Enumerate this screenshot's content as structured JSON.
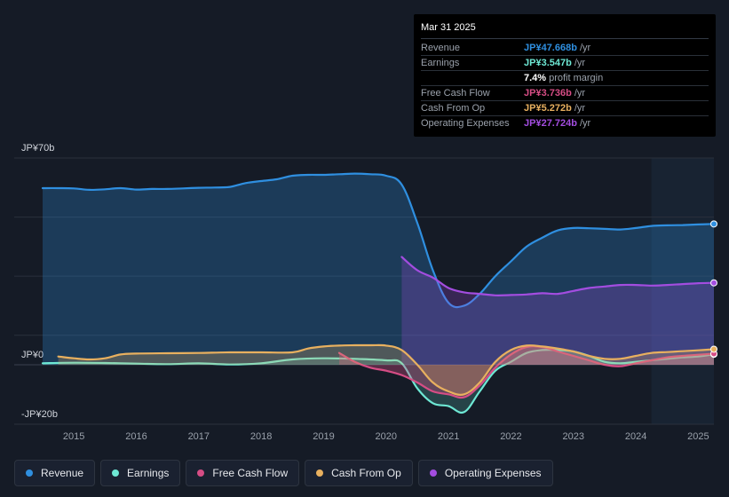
{
  "chart_data": {
    "type": "area",
    "title": "",
    "y_axis_labels": {
      "top": "JP¥70b",
      "zero": "JP¥0",
      "bottom": "-JP¥20b"
    },
    "ylim": [
      -20,
      70
    ],
    "xlim": [
      2014.5,
      2025.25
    ],
    "x_ticks": [
      "2015",
      "2016",
      "2017",
      "2018",
      "2019",
      "2020",
      "2021",
      "2022",
      "2023",
      "2024",
      "2025"
    ],
    "x_tick_values": [
      2015,
      2016,
      2017,
      2018,
      2019,
      2020,
      2021,
      2022,
      2023,
      2024,
      2025
    ],
    "forecast_start": 2024.25,
    "series": [
      {
        "name": "Revenue",
        "color": "#2f8fe0",
        "fill": true,
        "fill_opacity": 0.28,
        "points": [
          [
            2014.5,
            59.8
          ],
          [
            2014.75,
            59.8
          ],
          [
            2015.0,
            59.7
          ],
          [
            2015.25,
            59.2
          ],
          [
            2015.5,
            59.4
          ],
          [
            2015.75,
            59.8
          ],
          [
            2016.0,
            59.3
          ],
          [
            2016.25,
            59.5
          ],
          [
            2016.5,
            59.5
          ],
          [
            2016.75,
            59.7
          ],
          [
            2017.0,
            59.9
          ],
          [
            2017.25,
            60.0
          ],
          [
            2017.5,
            60.2
          ],
          [
            2017.75,
            61.5
          ],
          [
            2018.0,
            62.2
          ],
          [
            2018.25,
            62.8
          ],
          [
            2018.5,
            64.0
          ],
          [
            2018.75,
            64.3
          ],
          [
            2019.0,
            64.3
          ],
          [
            2019.25,
            64.5
          ],
          [
            2019.5,
            64.7
          ],
          [
            2019.75,
            64.5
          ],
          [
            2020.0,
            64.0
          ],
          [
            2020.25,
            61.0
          ],
          [
            2020.5,
            48.0
          ],
          [
            2020.75,
            32.0
          ],
          [
            2021.0,
            21.0
          ],
          [
            2021.25,
            20.0
          ],
          [
            2021.5,
            24.0
          ],
          [
            2021.75,
            30.0
          ],
          [
            2022.0,
            35.0
          ],
          [
            2022.25,
            40.0
          ],
          [
            2022.5,
            43.0
          ],
          [
            2022.75,
            45.5
          ],
          [
            2023.0,
            46.3
          ],
          [
            2023.25,
            46.2
          ],
          [
            2023.5,
            46.0
          ],
          [
            2023.75,
            45.8
          ],
          [
            2024.0,
            46.3
          ],
          [
            2024.25,
            47.0
          ],
          [
            2024.5,
            47.2
          ],
          [
            2024.75,
            47.3
          ],
          [
            2025.0,
            47.5
          ],
          [
            2025.25,
            47.668
          ]
        ]
      },
      {
        "name": "Operating Expenses",
        "color": "#a34de0",
        "fill": true,
        "fill_opacity": 0.25,
        "points": [
          [
            2020.25,
            36.5
          ],
          [
            2020.5,
            32.0
          ],
          [
            2020.75,
            29.5
          ],
          [
            2021.0,
            26.0
          ],
          [
            2021.25,
            24.5
          ],
          [
            2021.5,
            24.0
          ],
          [
            2021.75,
            23.5
          ],
          [
            2022.0,
            23.6
          ],
          [
            2022.25,
            23.8
          ],
          [
            2022.5,
            24.2
          ],
          [
            2022.75,
            24.0
          ],
          [
            2023.0,
            25.0
          ],
          [
            2023.25,
            26.0
          ],
          [
            2023.5,
            26.5
          ],
          [
            2023.75,
            27.0
          ],
          [
            2024.0,
            27.0
          ],
          [
            2024.25,
            26.8
          ],
          [
            2024.5,
            27.0
          ],
          [
            2024.75,
            27.3
          ],
          [
            2025.0,
            27.6
          ],
          [
            2025.25,
            27.724
          ]
        ]
      },
      {
        "name": "Earnings",
        "color": "#6ee8d4",
        "fill": true,
        "fill_opacity": 0.2,
        "points": [
          [
            2014.5,
            0.5
          ],
          [
            2015.0,
            0.7
          ],
          [
            2015.5,
            0.6
          ],
          [
            2016.0,
            0.4
          ],
          [
            2016.5,
            0.2
          ],
          [
            2017.0,
            0.5
          ],
          [
            2017.5,
            0.1
          ],
          [
            2018.0,
            0.5
          ],
          [
            2018.5,
            1.8
          ],
          [
            2019.0,
            2.2
          ],
          [
            2019.5,
            2.0
          ],
          [
            2020.0,
            1.5
          ],
          [
            2020.25,
            0.5
          ],
          [
            2020.5,
            -8.0
          ],
          [
            2020.75,
            -13.0
          ],
          [
            2021.0,
            -14.0
          ],
          [
            2021.25,
            -16.0
          ],
          [
            2021.5,
            -9.0
          ],
          [
            2021.75,
            -2.0
          ],
          [
            2022.0,
            1.0
          ],
          [
            2022.25,
            4.0
          ],
          [
            2022.5,
            5.0
          ],
          [
            2022.75,
            5.0
          ],
          [
            2023.0,
            4.5
          ],
          [
            2023.25,
            3.0
          ],
          [
            2023.5,
            1.0
          ],
          [
            2023.75,
            0.5
          ],
          [
            2024.0,
            1.0
          ],
          [
            2024.25,
            1.5
          ],
          [
            2024.5,
            2.0
          ],
          [
            2024.75,
            2.5
          ],
          [
            2025.0,
            2.8
          ],
          [
            2025.25,
            3.547
          ]
        ]
      },
      {
        "name": "Free Cash Flow",
        "color": "#d64d85",
        "fill": true,
        "fill_opacity": 0.35,
        "points": [
          [
            2019.25,
            4.0
          ],
          [
            2019.5,
            1.0
          ],
          [
            2019.75,
            -1.0
          ],
          [
            2020.0,
            -2.0
          ],
          [
            2020.25,
            -3.5
          ],
          [
            2020.5,
            -6.0
          ],
          [
            2020.75,
            -9.0
          ],
          [
            2021.0,
            -10.0
          ],
          [
            2021.25,
            -11.0
          ],
          [
            2021.5,
            -7.0
          ],
          [
            2021.75,
            -1.0
          ],
          [
            2022.0,
            3.5
          ],
          [
            2022.25,
            6.0
          ],
          [
            2022.5,
            6.0
          ],
          [
            2022.75,
            4.5
          ],
          [
            2023.0,
            3.0
          ],
          [
            2023.25,
            1.5
          ],
          [
            2023.5,
            0.0
          ],
          [
            2023.75,
            -0.5
          ],
          [
            2024.0,
            0.5
          ],
          [
            2024.25,
            1.5
          ],
          [
            2024.5,
            2.5
          ],
          [
            2024.75,
            3.0
          ],
          [
            2025.0,
            3.4
          ],
          [
            2025.25,
            3.736
          ]
        ]
      },
      {
        "name": "Cash From Op",
        "color": "#e8b05f",
        "fill": true,
        "fill_opacity": 0.25,
        "points": [
          [
            2014.75,
            2.8
          ],
          [
            2015.0,
            2.2
          ],
          [
            2015.25,
            1.8
          ],
          [
            2015.5,
            2.2
          ],
          [
            2015.75,
            3.5
          ],
          [
            2016.0,
            3.8
          ],
          [
            2016.5,
            3.9
          ],
          [
            2017.0,
            4.0
          ],
          [
            2017.5,
            4.2
          ],
          [
            2018.0,
            4.2
          ],
          [
            2018.5,
            4.2
          ],
          [
            2018.75,
            5.5
          ],
          [
            2019.0,
            6.2
          ],
          [
            2019.25,
            6.5
          ],
          [
            2019.5,
            6.6
          ],
          [
            2019.75,
            6.6
          ],
          [
            2020.0,
            6.5
          ],
          [
            2020.25,
            5.0
          ],
          [
            2020.5,
            0.0
          ],
          [
            2020.75,
            -6.0
          ],
          [
            2021.0,
            -9.0
          ],
          [
            2021.25,
            -10.0
          ],
          [
            2021.5,
            -6.0
          ],
          [
            2021.75,
            1.0
          ],
          [
            2022.0,
            5.0
          ],
          [
            2022.25,
            6.5
          ],
          [
            2022.5,
            6.2
          ],
          [
            2022.75,
            5.5
          ],
          [
            2023.0,
            4.5
          ],
          [
            2023.25,
            3.0
          ],
          [
            2023.5,
            2.0
          ],
          [
            2023.75,
            2.0
          ],
          [
            2024.0,
            3.0
          ],
          [
            2024.25,
            4.0
          ],
          [
            2024.5,
            4.3
          ],
          [
            2024.75,
            4.6
          ],
          [
            2025.0,
            4.9
          ],
          [
            2025.25,
            5.272
          ]
        ]
      }
    ],
    "legend_position": "bottom-left"
  },
  "tooltip": {
    "date": "Mar 31 2025",
    "rows": [
      {
        "label": "Revenue",
        "value": "JP¥47.668b",
        "unit": "/yr",
        "color": "#2f8fe0"
      },
      {
        "label": "Earnings",
        "value": "JP¥3.547b",
        "unit": "/yr",
        "color": "#6ee8d4"
      },
      {
        "label": "",
        "value": "7.4%",
        "unit": "profit margin",
        "color": "#ffffff"
      },
      {
        "label": "Free Cash Flow",
        "value": "JP¥3.736b",
        "unit": "/yr",
        "color": "#d64d85"
      },
      {
        "label": "Cash From Op",
        "value": "JP¥5.272b",
        "unit": "/yr",
        "color": "#e8b05f"
      },
      {
        "label": "Operating Expenses",
        "value": "JP¥27.724b",
        "unit": "/yr",
        "color": "#a34de0"
      }
    ]
  },
  "legend": [
    {
      "label": "Revenue",
      "color": "#2f8fe0"
    },
    {
      "label": "Earnings",
      "color": "#6ee8d4"
    },
    {
      "label": "Free Cash Flow",
      "color": "#d64d85"
    },
    {
      "label": "Cash From Op",
      "color": "#e8b05f"
    },
    {
      "label": "Operating Expenses",
      "color": "#a34de0"
    }
  ]
}
